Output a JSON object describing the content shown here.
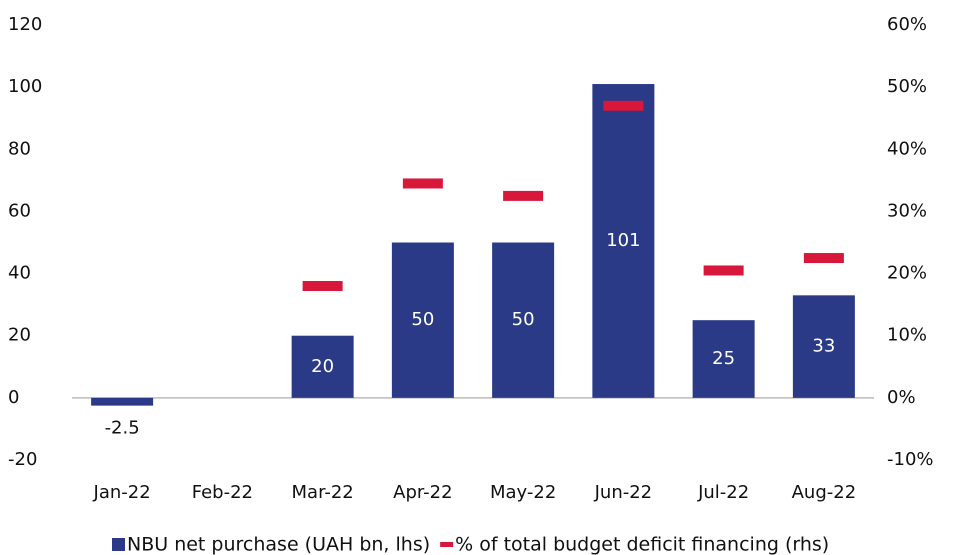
{
  "chart_data": {
    "type": "bar",
    "categories": [
      "Jan-22",
      "Feb-22",
      "Mar-22",
      "Apr-22",
      "May-22",
      "Jun-22",
      "Jul-22",
      "Aug-22"
    ],
    "series": [
      {
        "name": "NBU net purchase (UAH bn, lhs)",
        "type": "bar",
        "color": "#2b3a86",
        "values": [
          -2.5,
          null,
          20,
          50,
          50,
          101,
          25,
          33
        ]
      },
      {
        "name": "% of total budget deficit financing (rhs)",
        "type": "dash",
        "axis": "y2",
        "color": "#d7183a",
        "values": [
          null,
          null,
          18,
          34.5,
          32.5,
          47,
          20.5,
          22.5
        ]
      }
    ],
    "ylim": [
      -20,
      120
    ],
    "yticks": [
      -20,
      0,
      20,
      40,
      60,
      80,
      100,
      120
    ],
    "y2lim": [
      -10,
      60
    ],
    "y2ticks": [
      {
        "value": -10,
        "label": "-10%"
      },
      {
        "value": 0,
        "label": "0%"
      },
      {
        "value": 10,
        "label": "10%"
      },
      {
        "value": 20,
        "label": "20%"
      },
      {
        "value": 30,
        "label": "30%"
      },
      {
        "value": 40,
        "label": "40%"
      },
      {
        "value": 50,
        "label": "50%"
      },
      {
        "value": 60,
        "label": "60%"
      }
    ],
    "grid": false
  }
}
